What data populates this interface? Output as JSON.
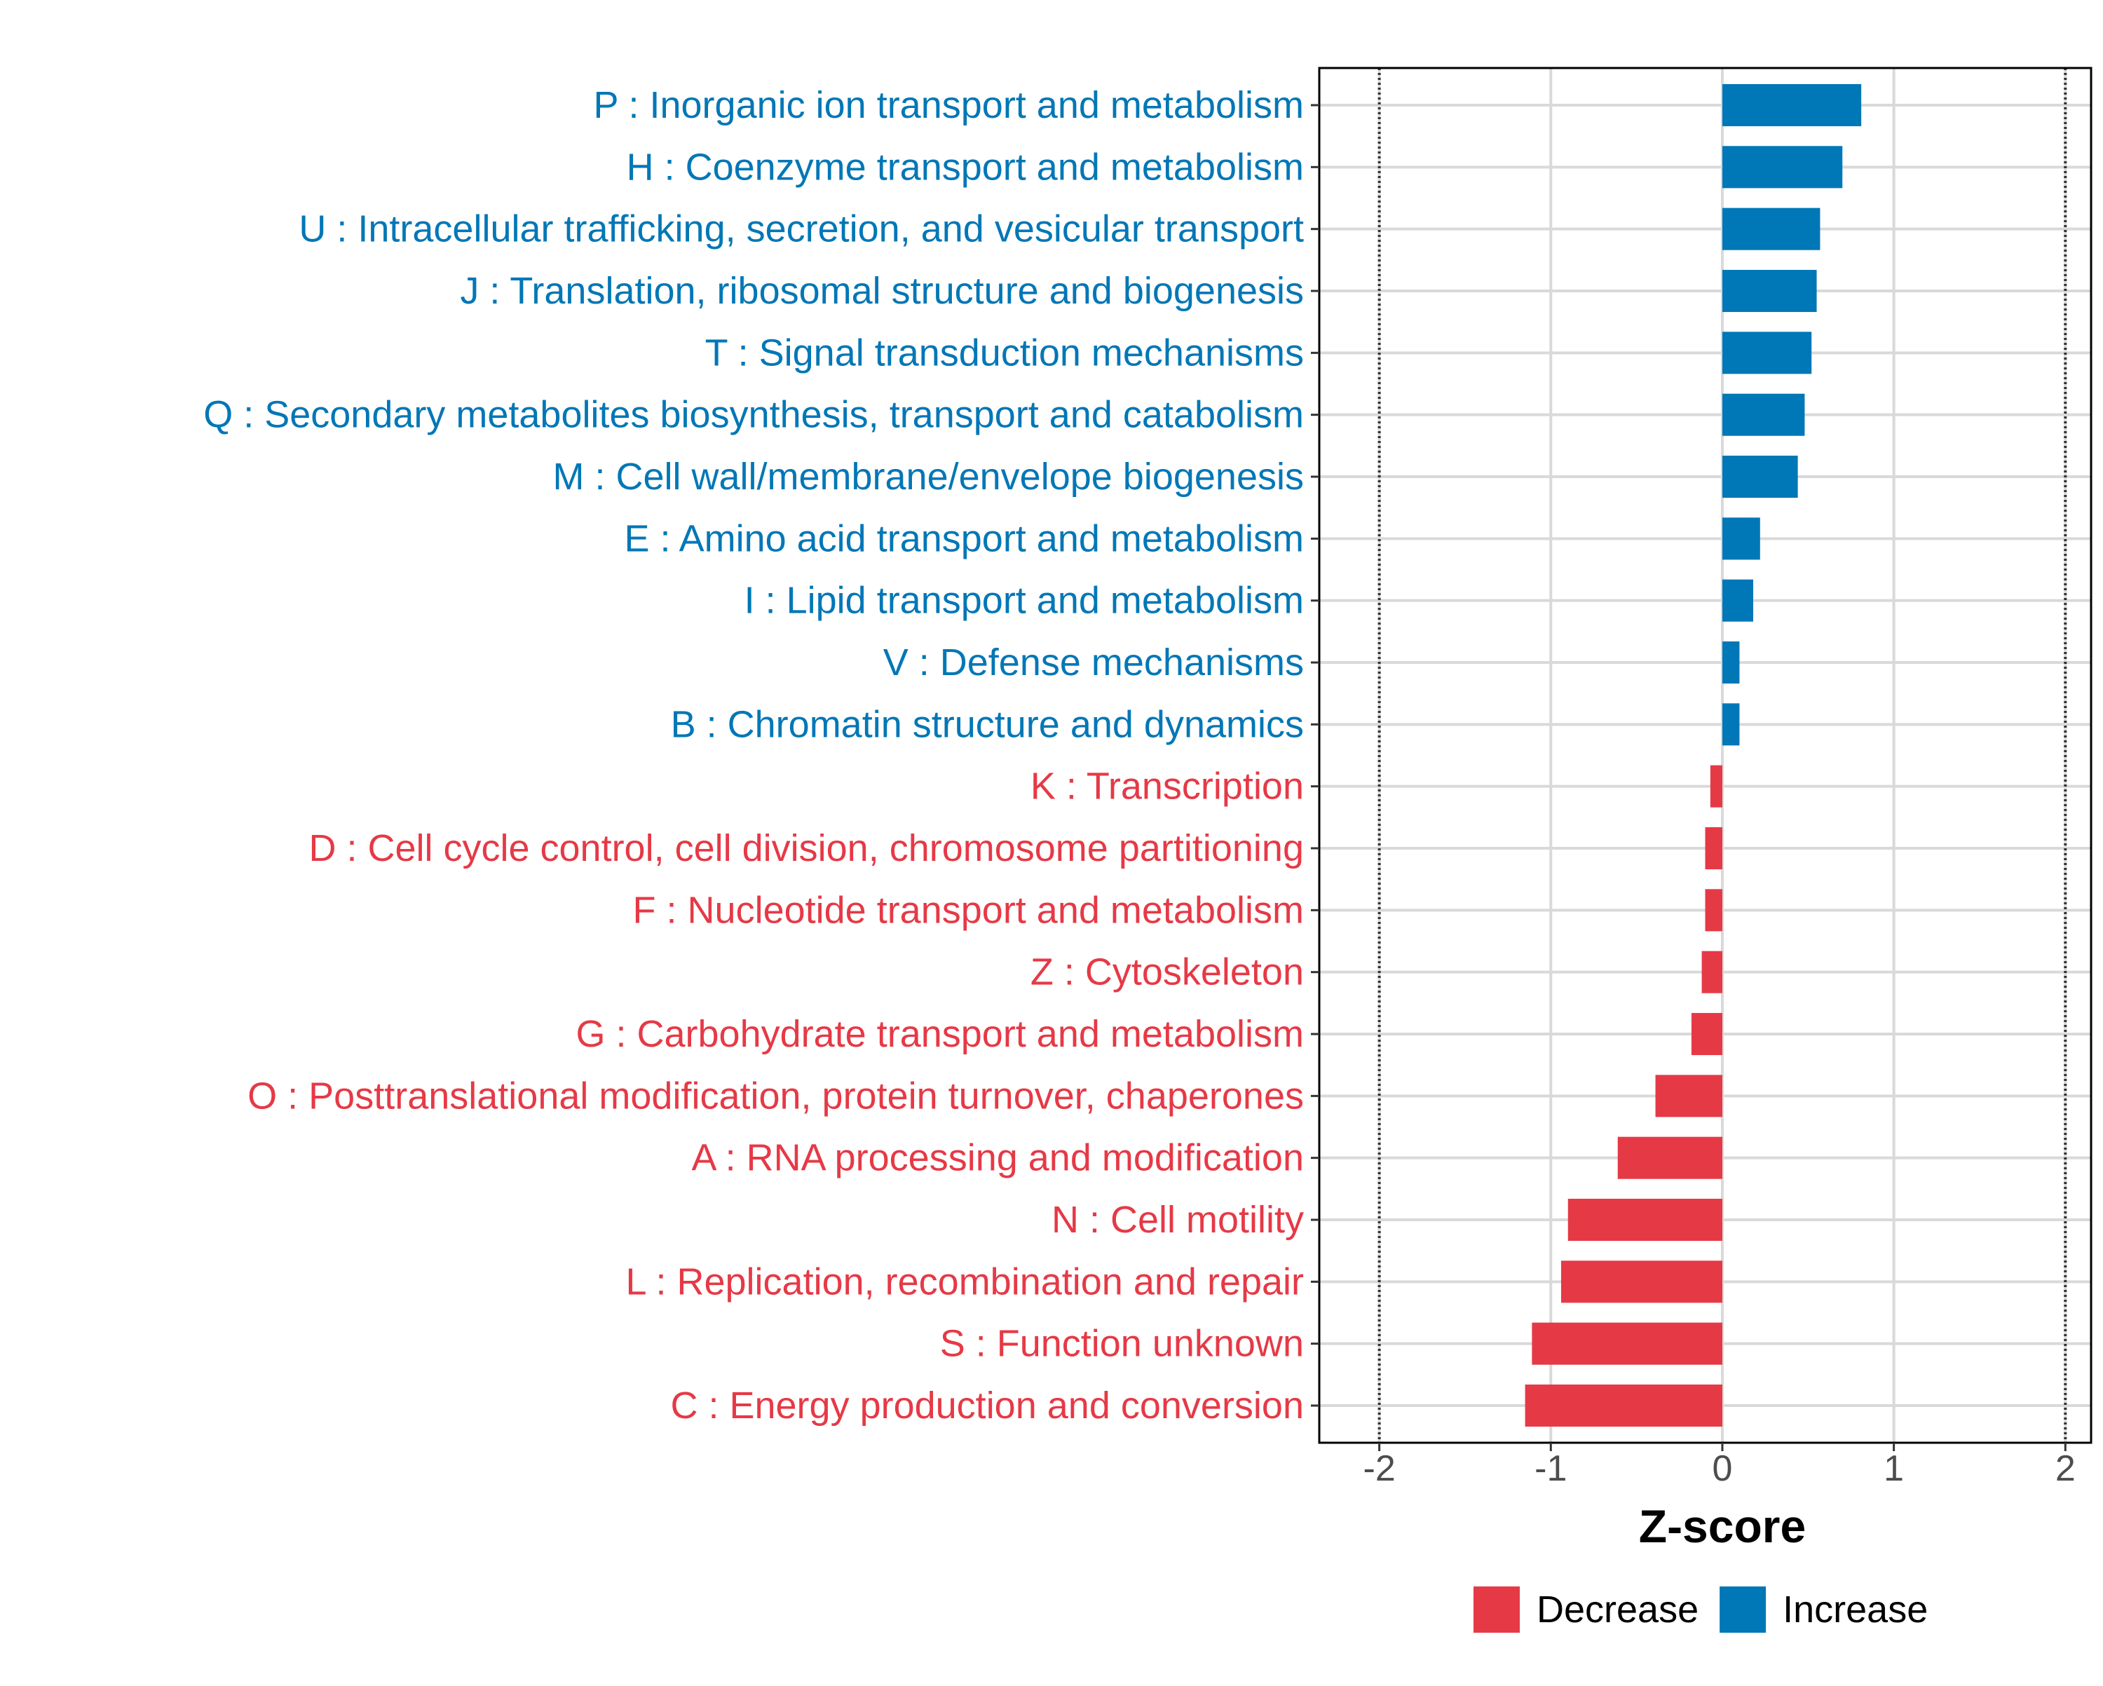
{
  "chart_data": {
    "type": "bar",
    "orientation": "horizontal",
    "xlabel": "Z-score",
    "ylabel": "",
    "xlim": [
      -2.35,
      2.15
    ],
    "xticks": [
      -2,
      -1,
      0,
      1,
      2
    ],
    "xtick_labels": [
      "-2",
      "-1",
      "0",
      "1",
      "2"
    ],
    "reference_lines": [
      -2,
      2
    ],
    "grid": true,
    "legend": {
      "position": "bottom",
      "entries": [
        {
          "label": "Decrease",
          "color": "#E63946"
        },
        {
          "label": "Increase",
          "color": "#0077B6"
        }
      ]
    },
    "categories": [
      "P : Inorganic ion transport and metabolism",
      "H : Coenzyme transport and metabolism",
      "U : Intracellular trafficking, secretion, and vesicular transport",
      "J : Translation, ribosomal structure and biogenesis",
      "T : Signal transduction mechanisms",
      "Q : Secondary metabolites biosynthesis, transport and catabolism",
      "M : Cell wall/membrane/envelope biogenesis",
      "E : Amino acid transport and metabolism",
      "I : Lipid transport and metabolism",
      "V : Defense mechanisms",
      "B : Chromatin structure and dynamics",
      "K : Transcription",
      "D : Cell cycle control, cell division, chromosome partitioning",
      "F : Nucleotide transport and metabolism",
      "Z : Cytoskeleton",
      "G : Carbohydrate transport and metabolism",
      "O : Posttranslational modification, protein turnover, chaperones",
      "A : RNA processing and modification",
      "N : Cell motility",
      "L : Replication, recombination and repair",
      "S : Function unknown",
      "C : Energy production and conversion"
    ],
    "values": [
      0.81,
      0.7,
      0.57,
      0.55,
      0.52,
      0.48,
      0.44,
      0.22,
      0.18,
      0.1,
      0.1,
      -0.07,
      -0.1,
      -0.1,
      -0.12,
      -0.18,
      -0.39,
      -0.61,
      -0.9,
      -0.94,
      -1.11,
      -1.15
    ],
    "groups": [
      "Increase",
      "Increase",
      "Increase",
      "Increase",
      "Increase",
      "Increase",
      "Increase",
      "Increase",
      "Increase",
      "Increase",
      "Increase",
      "Decrease",
      "Decrease",
      "Decrease",
      "Decrease",
      "Decrease",
      "Decrease",
      "Decrease",
      "Decrease",
      "Decrease",
      "Decrease",
      "Decrease"
    ]
  }
}
